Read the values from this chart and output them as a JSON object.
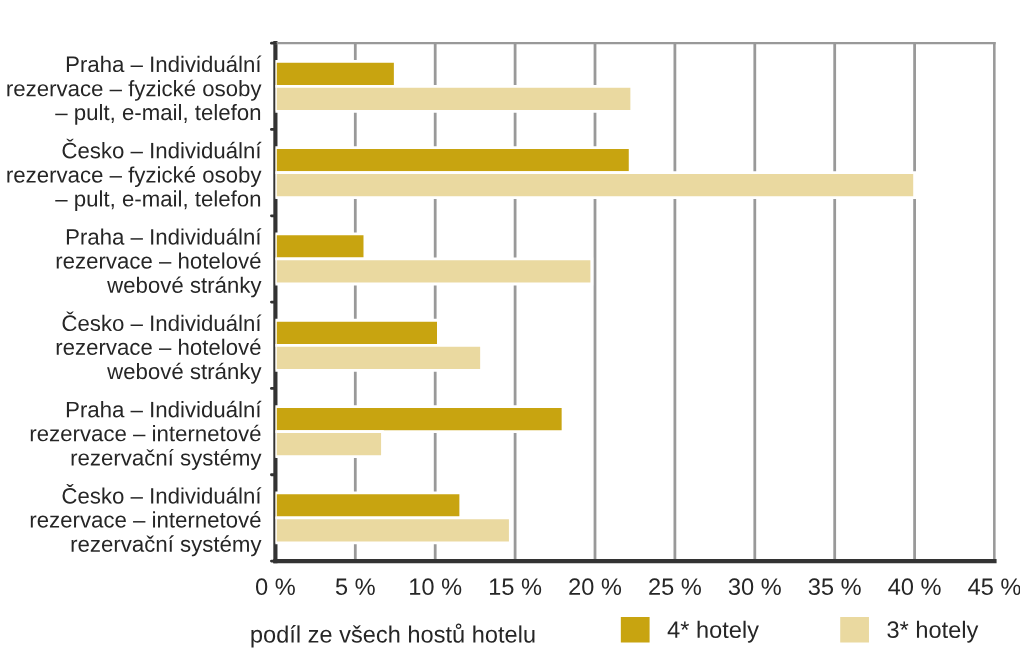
{
  "chart_data": {
    "type": "bar",
    "orientation": "horizontal",
    "xlabel": "podíl ze všech hostů hotelu",
    "categories": [
      "Praha – Individuální\nrezervace – fyzické osoby\n– pult, e-mail, telefon",
      "Česko – Individuální\nrezervace – fyzické osoby\n– pult, e-mail, telefon",
      "Praha – Individuální\nrezervace – hotelové\nwebové stránky",
      "Česko – Individuální\nrezervace – hotelové\nwebové stránky",
      "Praha – Individuální\nrezervace – internetové\nrezervační systémy",
      "Česko – Individuální\nrezervace – internetové\nrezervační systémy"
    ],
    "series": [
      {
        "name": "4* hotely",
        "color": "#c8a410",
        "values": [
          7.5,
          22.2,
          5.6,
          10.2,
          18.0,
          11.6
        ]
      },
      {
        "name": "3* hotely",
        "color": "#ead9a0",
        "values": [
          22.3,
          40.0,
          19.8,
          12.9,
          6.7,
          14.7
        ]
      }
    ],
    "xlim": [
      0,
      45
    ],
    "xticks": [
      {
        "value": 0,
        "label": "0 %"
      },
      {
        "value": 5,
        "label": "5 %"
      },
      {
        "value": 10,
        "label": "10 %"
      },
      {
        "value": 15,
        "label": "15 %"
      },
      {
        "value": 20,
        "label": "20 %"
      },
      {
        "value": 25,
        "label": "25 %"
      },
      {
        "value": 30,
        "label": "30 %"
      },
      {
        "value": 35,
        "label": "35 %"
      },
      {
        "value": 40,
        "label": "40 %"
      },
      {
        "value": 45,
        "label": "45 %"
      }
    ],
    "grid": "x",
    "legend": "bottom"
  }
}
